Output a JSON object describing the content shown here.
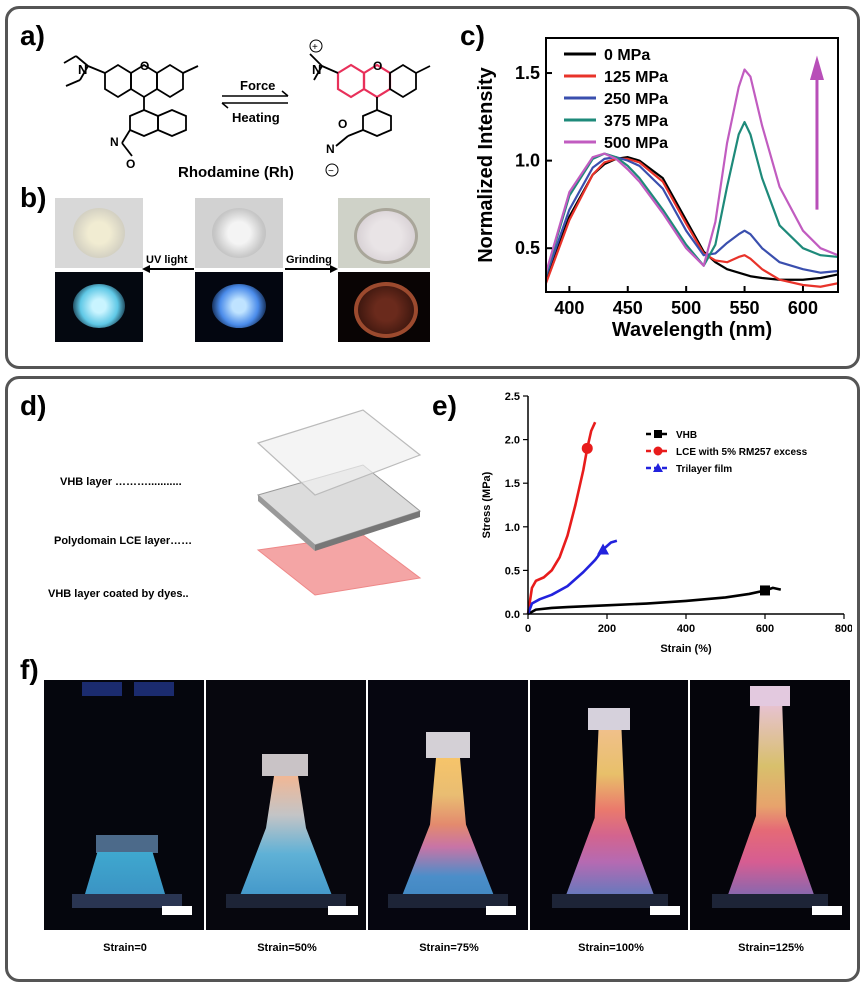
{
  "panels": {
    "a": "a)",
    "b": "b)",
    "c": "c)",
    "d": "d)",
    "e": "e)",
    "f": "f)"
  },
  "panel_a": {
    "force_label": "Force",
    "heating_label": "Heating",
    "compound_label": "Rhodamine (Rh)"
  },
  "panel_b": {
    "uv_label": "UV light",
    "grinding_label": "Grinding"
  },
  "panel_d": {
    "layers": [
      "VHB layer ………...........",
      "Polydomain  LCE layer……",
      "VHB layer coated by dyes.."
    ]
  },
  "panel_f": {
    "captions": [
      "Strain=0",
      "Strain=50%",
      "Strain=75%",
      "Strain=100%",
      "Strain=125%"
    ]
  },
  "chart_data": [
    {
      "type": "line",
      "xlabel": "Wavelength (nm)",
      "ylabel": "Normalized Intensity",
      "xlim": [
        380,
        630
      ],
      "ylim": [
        0.25,
        1.7
      ],
      "xticks": [
        400,
        450,
        500,
        550,
        600
      ],
      "yticks": [
        0.5,
        1.0,
        1.5
      ],
      "legend_position": "top-left",
      "arrow": "upward arrow near 610 nm",
      "x": [
        380,
        400,
        420,
        430,
        440,
        450,
        460,
        480,
        500,
        515,
        525,
        535,
        545,
        550,
        555,
        565,
        580,
        600,
        615,
        630
      ],
      "series": [
        {
          "name": "0 MPa",
          "color": "#000000",
          "values": [
            0.32,
            0.68,
            0.92,
            0.98,
            1.01,
            1.02,
            1.0,
            0.9,
            0.66,
            0.48,
            0.42,
            0.38,
            0.36,
            0.35,
            0.34,
            0.33,
            0.32,
            0.32,
            0.33,
            0.35
          ]
        },
        {
          "name": "125 MPa",
          "color": "#e8332a",
          "values": [
            0.3,
            0.66,
            0.92,
            0.99,
            1.01,
            1.01,
            0.99,
            0.88,
            0.64,
            0.47,
            0.43,
            0.42,
            0.45,
            0.46,
            0.44,
            0.38,
            0.32,
            0.29,
            0.28,
            0.3
          ]
        },
        {
          "name": "250 MPa",
          "color": "#3a4fae",
          "values": [
            0.34,
            0.72,
            0.96,
            1.01,
            1.02,
            1.0,
            0.97,
            0.84,
            0.6,
            0.46,
            0.47,
            0.53,
            0.58,
            0.6,
            0.58,
            0.5,
            0.42,
            0.38,
            0.36,
            0.37
          ]
        },
        {
          "name": "375 MPa",
          "color": "#1e8a7a",
          "values": [
            0.35,
            0.8,
            1.01,
            1.04,
            1.02,
            0.97,
            0.9,
            0.72,
            0.52,
            0.4,
            0.52,
            0.85,
            1.15,
            1.22,
            1.15,
            0.9,
            0.63,
            0.5,
            0.46,
            0.45
          ]
        },
        {
          "name": "500 MPa",
          "color": "#c15cc0",
          "values": [
            0.36,
            0.82,
            1.02,
            1.04,
            1.01,
            0.95,
            0.88,
            0.7,
            0.5,
            0.4,
            0.65,
            1.1,
            1.42,
            1.52,
            1.48,
            1.2,
            0.85,
            0.6,
            0.5,
            0.46
          ]
        }
      ]
    },
    {
      "type": "line",
      "xlabel": "Strain (%)",
      "ylabel": "Stress (MPa)",
      "xlim": [
        0,
        800
      ],
      "ylim": [
        0,
        2.5
      ],
      "xticks": [
        0,
        200,
        400,
        600,
        800
      ],
      "yticks": [
        0.0,
        0.5,
        1.0,
        1.5,
        2.0,
        2.5
      ],
      "legend_position": "top-right",
      "series": [
        {
          "name": "VHB",
          "color": "#000000",
          "marker": "square",
          "x": [
            0,
            20,
            60,
            100,
            200,
            300,
            400,
            500,
            560,
            600,
            620,
            640
          ],
          "values": [
            0.0,
            0.05,
            0.07,
            0.08,
            0.1,
            0.12,
            0.15,
            0.19,
            0.23,
            0.27,
            0.3,
            0.28
          ]
        },
        {
          "name": "LCE with 5% RM257 excess",
          "color": "#e81c1c",
          "marker": "circle",
          "x": [
            0,
            10,
            20,
            40,
            60,
            80,
            100,
            120,
            140,
            150,
            160,
            170
          ],
          "values": [
            0.0,
            0.3,
            0.38,
            0.42,
            0.5,
            0.65,
            0.9,
            1.25,
            1.65,
            1.9,
            2.1,
            2.2
          ]
        },
        {
          "name": "Trilayer film",
          "color": "#2222dd",
          "marker": "triangle",
          "x": [
            0,
            10,
            30,
            60,
            100,
            140,
            170,
            190,
            210,
            225
          ],
          "values": [
            0.0,
            0.12,
            0.17,
            0.22,
            0.32,
            0.48,
            0.62,
            0.74,
            0.82,
            0.84
          ]
        }
      ]
    }
  ],
  "colors": {
    "frame": "#555555",
    "rh_closed": "#000000",
    "rh_open": "#e8305a",
    "dye_layer": "#f4a5a5",
    "arrow": "#b84fb8"
  }
}
